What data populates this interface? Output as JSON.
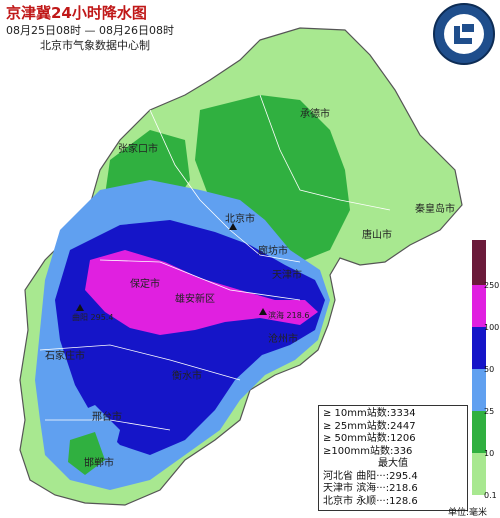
{
  "map": {
    "title": "京津冀24小时降水图",
    "subtitle": "08月25日08时 — 08月26日08时",
    "issuer": "北京市气象数据中心制",
    "cities": [
      {
        "name": "承德市",
        "key": "chengde"
      },
      {
        "name": "张家口市",
        "key": "zhangjiakou"
      },
      {
        "name": "北京市",
        "key": "beijing"
      },
      {
        "name": "秦皇岛市",
        "key": "qinhuangdao"
      },
      {
        "name": "唐山市",
        "key": "tangshan"
      },
      {
        "name": "廊坊市",
        "key": "langfang"
      },
      {
        "name": "天津市",
        "key": "tianjin"
      },
      {
        "name": "保定市",
        "key": "baoding"
      },
      {
        "name": "雄安新区",
        "key": "xiongan"
      },
      {
        "name": "沧州市",
        "key": "cangzhou"
      },
      {
        "name": "石家庄市",
        "key": "shijiazhuang"
      },
      {
        "name": "衡水市",
        "key": "hengshui"
      },
      {
        "name": "邢台市",
        "key": "xingtai"
      },
      {
        "name": "邯郸市",
        "key": "handan"
      }
    ],
    "point_labels": [
      {
        "text": "曲阳 295.4",
        "key": "quyang"
      },
      {
        "text": "滨海 218.6",
        "key": "binhai"
      }
    ]
  },
  "legend": {
    "ticks": [
      "250",
      "100",
      "50",
      "25",
      "10",
      "0.1"
    ],
    "colors": [
      "#6b1a3a",
      "#e020e0",
      "#1515c8",
      "#60a0f0",
      "#30b040",
      "#a8e890"
    ],
    "unit": "单位:毫米"
  },
  "stats": {
    "counts": [
      {
        "label": "≥ 10mm站数:",
        "value": "3334"
      },
      {
        "label": "≥ 25mm站数:",
        "value": "2447"
      },
      {
        "label": "≥ 50mm站数:",
        "value": "1206"
      },
      {
        "label": "≥100mm站数:",
        "value": "336"
      }
    ],
    "max_header": "最大值",
    "max_values": [
      {
        "province": "河北省",
        "station": "曲阳",
        "value": "295.4"
      },
      {
        "province": "天津市",
        "station": "滨海",
        "value": "218.6"
      },
      {
        "province": "北京市",
        "station": "永顺",
        "value": "128.6"
      }
    ]
  }
}
